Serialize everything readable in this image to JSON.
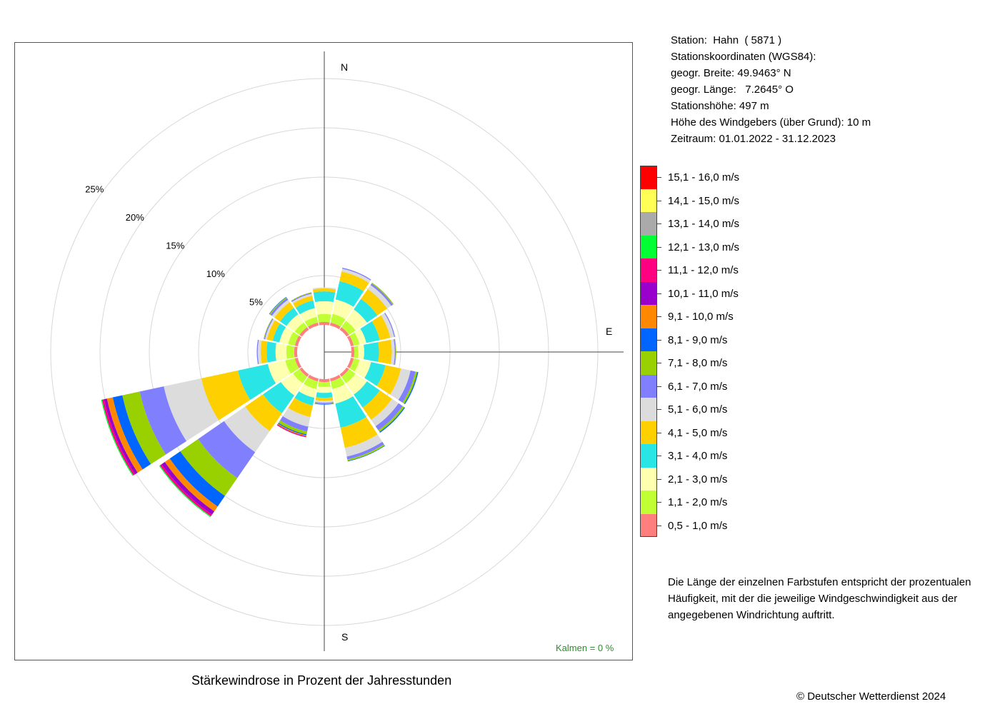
{
  "station": {
    "line1": "Station:  Hahn  ( 5871 )",
    "line2": "Stationskoordinaten (WGS84):",
    "line3": "geogr. Breite: 49.9463° N",
    "line4": "geogr. Länge:   7.2645° O",
    "line5": "Stationshöhe: 497 m",
    "line6": "Höhe des Windgebers (über Grund): 10 m",
    "line7": "Zeitraum: 01.01.2022 - 31.12.2023"
  },
  "chart_data": {
    "type": "windrose",
    "title": "Stärkewindrose in Prozent der Jahresstunden",
    "directions": [
      "N",
      "NNE",
      "NE",
      "ENE",
      "E",
      "ESE",
      "SE",
      "SSE",
      "S",
      "SSW",
      "SW",
      "WSW",
      "W",
      "WNW",
      "NW",
      "NNW"
    ],
    "angles_deg": [
      0,
      22.5,
      45,
      67.5,
      90,
      112.5,
      135,
      157.5,
      180,
      202.5,
      225,
      247.5,
      270,
      292.5,
      315,
      337.5
    ],
    "compass_labels": {
      "N": "N",
      "E": "E",
      "S": "S"
    },
    "rings": [
      5,
      10,
      15,
      20,
      25
    ],
    "ring_labels": [
      "5%",
      "10%",
      "15%",
      "20%",
      "25%"
    ],
    "calm_label": "Kalmen  =  0 %",
    "speed_classes": [
      {
        "label": "0,5 - 1,0 m/s",
        "color": "#ff7f7f"
      },
      {
        "label": "1,1 - 2,0 m/s",
        "color": "#bfff33"
      },
      {
        "label": "2,1 - 3,0 m/s",
        "color": "#ffffb0"
      },
      {
        "label": "3,1 - 4,0 m/s",
        "color": "#2ae5e5"
      },
      {
        "label": "4,1 - 5,0 m/s",
        "color": "#ffd000"
      },
      {
        "label": "5,1 - 6,0 m/s",
        "color": "#dcdcdc"
      },
      {
        "label": "6,1 - 7,0 m/s",
        "color": "#8080ff"
      },
      {
        "label": "7,1 - 8,0 m/s",
        "color": "#99d100"
      },
      {
        "label": "8,1 - 9,0 m/s",
        "color": "#0066ff"
      },
      {
        "label": "9,1 - 10,0 m/s",
        "color": "#ff8800"
      },
      {
        "label": "10,1 - 11,0 m/s",
        "color": "#9900cc"
      },
      {
        "label": "11,1 - 12,0 m/s",
        "color": "#ff0080"
      },
      {
        "label": "12,1 - 13,0 m/s",
        "color": "#00ff33"
      },
      {
        "label": "13,1 - 14,0 m/s",
        "color": "#aaaaaa"
      },
      {
        "label": "14,1 - 15,0 m/s",
        "color": "#ffff55"
      },
      {
        "label": "15,1 - 16,0 m/s",
        "color": "#ff0000"
      }
    ],
    "values_percent": [
      [
        0.3,
        0.8,
        1.3,
        1.0,
        0.3,
        0.1,
        0,
        0,
        0,
        0,
        0,
        0,
        0,
        0,
        0,
        0
      ],
      [
        0.3,
        0.9,
        1.5,
        1.9,
        1.0,
        0.3,
        0.1,
        0,
        0,
        0,
        0,
        0,
        0,
        0,
        0,
        0
      ],
      [
        0.3,
        0.8,
        1.4,
        1.3,
        1.2,
        0.5,
        0.2,
        0.1,
        0,
        0,
        0,
        0,
        0,
        0,
        0,
        0
      ],
      [
        0.3,
        0.6,
        0.7,
        1.4,
        1.1,
        0.4,
        0.1,
        0,
        0,
        0,
        0,
        0,
        0,
        0,
        0,
        0
      ],
      [
        0.3,
        0.4,
        0.6,
        1.5,
        1.3,
        0.3,
        0.1,
        0.05,
        0,
        0,
        0,
        0,
        0,
        0,
        0,
        0
      ],
      [
        0.3,
        0.6,
        1.2,
        1.5,
        1.6,
        1.0,
        0.5,
        0.2,
        0.1,
        0,
        0,
        0,
        0,
        0,
        0,
        0
      ],
      [
        0.3,
        0.8,
        1.4,
        1.6,
        1.5,
        0.8,
        0.5,
        0.2,
        0.1,
        0,
        0,
        0,
        0,
        0,
        0,
        0
      ],
      [
        0.3,
        0.8,
        1.5,
        2.5,
        2.1,
        0.9,
        0.3,
        0.15,
        0.05,
        0,
        0,
        0,
        0,
        0,
        0,
        0
      ],
      [
        0.3,
        0.5,
        0.6,
        0.5,
        0.3,
        0.2,
        0.1,
        0.05,
        0.05,
        0,
        0,
        0,
        0,
        0,
        0,
        0
      ],
      [
        0.3,
        0.8,
        0.9,
        0.8,
        1.2,
        1.0,
        0.5,
        0.3,
        0.1,
        0.1,
        0.05,
        0.05,
        0,
        0,
        0,
        0
      ],
      [
        0.3,
        0.8,
        1.5,
        2.2,
        2.2,
        2.6,
        3.2,
        2.2,
        1.3,
        0.6,
        0.4,
        0.2,
        0.1,
        0,
        0,
        0
      ],
      [
        0.3,
        1.0,
        1.8,
        3.1,
        3.8,
        3.9,
        2.5,
        1.8,
        1.0,
        0.6,
        0.3,
        0.2,
        0.1,
        0,
        0,
        0
      ],
      [
        0.3,
        0.8,
        1.1,
        0.9,
        0.6,
        0.3,
        0.1,
        0,
        0,
        0,
        0,
        0,
        0,
        0,
        0,
        0
      ],
      [
        0.3,
        0.7,
        0.9,
        0.7,
        0.6,
        0.2,
        0.1,
        0.05,
        0,
        0,
        0,
        0,
        0,
        0,
        0,
        0
      ],
      [
        0.3,
        0.6,
        1.0,
        0.8,
        0.7,
        0.3,
        0.2,
        0.1,
        0.05,
        0,
        0,
        0,
        0,
        0,
        0,
        0
      ],
      [
        0.3,
        0.6,
        0.9,
        0.8,
        0.5,
        0.2,
        0.1,
        0.05,
        0,
        0,
        0,
        0,
        0,
        0,
        0,
        0
      ]
    ]
  },
  "note": "Die Länge der einzelnen Farbstufen entspricht der prozentualen Häufigkeit, mit der die jeweilige Windgeschwindigkeit aus der angegebenen Windrichtung auftritt.",
  "copyright": "© Deutscher Wetterdienst  2024"
}
